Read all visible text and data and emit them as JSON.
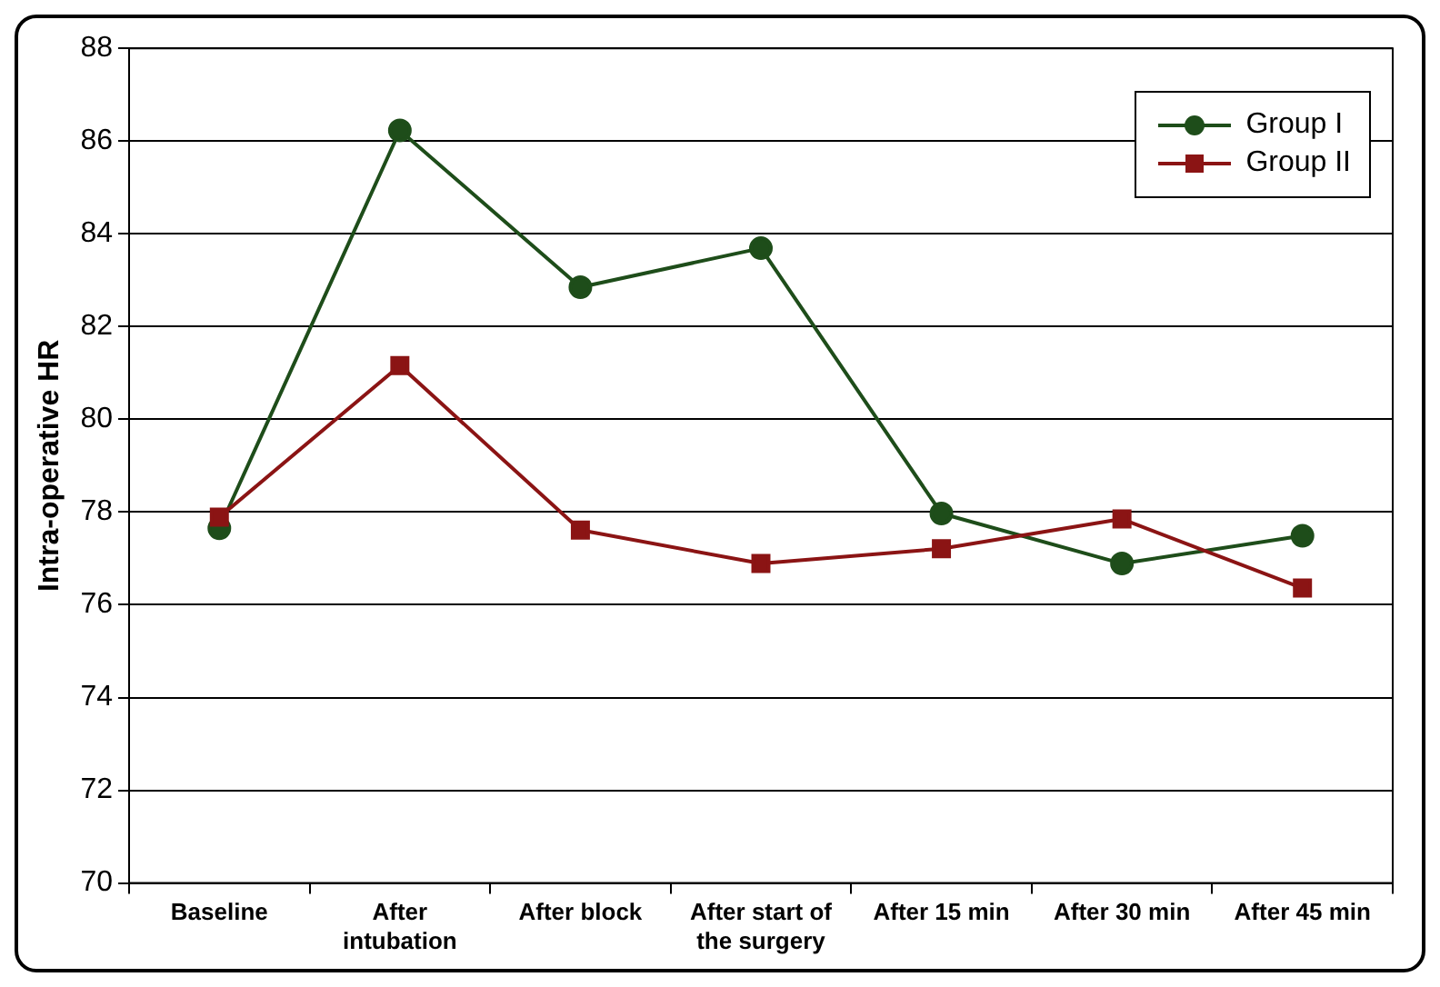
{
  "chart_data": {
    "type": "line",
    "ylabel": "Intra-operative HR",
    "categories": [
      "Baseline",
      "After intubation",
      "After block",
      "After start of the surgery",
      "After 15 min",
      "After 30 min",
      "After 45 min"
    ],
    "series": [
      {
        "name": "Group I",
        "color": "#1e4d1a",
        "marker": "circle",
        "values": [
          77.65,
          86.23,
          82.85,
          83.69,
          77.97,
          76.89,
          77.49
        ]
      },
      {
        "name": "Group II",
        "color": "#8b1414",
        "marker": "square",
        "values": [
          77.89,
          81.16,
          77.61,
          76.89,
          77.21,
          77.85,
          76.36
        ]
      }
    ],
    "ylim": [
      70,
      88
    ],
    "yticks": [
      70,
      72,
      74,
      76,
      78,
      80,
      82,
      84,
      86,
      88
    ],
    "grid": "y",
    "legend": "top right",
    "line_style": "solid"
  }
}
